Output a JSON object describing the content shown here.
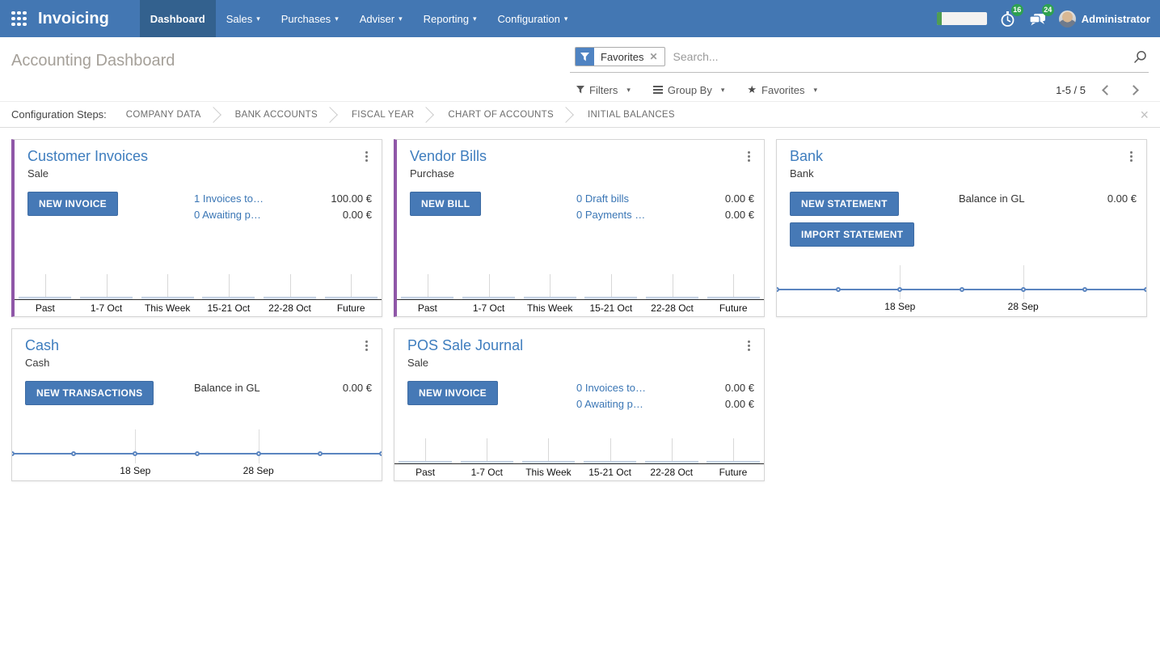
{
  "navbar": {
    "brand": "Invoicing",
    "menus": [
      {
        "label": "Dashboard",
        "active": true,
        "dropdown": false
      },
      {
        "label": "Sales",
        "active": false,
        "dropdown": true
      },
      {
        "label": "Purchases",
        "active": false,
        "dropdown": true
      },
      {
        "label": "Adviser",
        "active": false,
        "dropdown": true
      },
      {
        "label": "Reporting",
        "active": false,
        "dropdown": true
      },
      {
        "label": "Configuration",
        "active": false,
        "dropdown": true
      }
    ],
    "progress_percent": 10,
    "activities_badge": "16",
    "messages_badge": "24",
    "user_name": "Administrator"
  },
  "control_panel": {
    "title": "Accounting Dashboard",
    "search": {
      "facet_label": "Favorites",
      "placeholder": "Search..."
    },
    "filter_buttons": {
      "filters": "Filters",
      "group_by": "Group By",
      "favorites": "Favorites"
    },
    "pager": {
      "range": "1-5 / 5"
    }
  },
  "config_steps": {
    "label": "Configuration Steps:",
    "steps": [
      "COMPANY DATA",
      "BANK ACCOUNTS",
      "FISCAL YEAR",
      "CHART OF ACCOUNTS",
      "INITIAL BALANCES"
    ]
  },
  "cards": [
    {
      "title": "Customer Invoices",
      "subtitle": "Sale",
      "buttons": [
        "NEW INVOICE"
      ],
      "rows": [
        {
          "text": "1 Invoices to…",
          "amount": "100.00 €",
          "is_link": true
        },
        {
          "text": "0 Awaiting p…",
          "amount": "0.00 €",
          "is_link": true
        }
      ],
      "chart": {
        "type": "bar",
        "categories": [
          "Past",
          "1-7 Oct",
          "This Week",
          "15-21 Oct",
          "22-28 Oct",
          "Future"
        ],
        "values": [
          0,
          0,
          0,
          0,
          0,
          0
        ]
      }
    },
    {
      "title": "Vendor Bills",
      "subtitle": "Purchase",
      "buttons": [
        "NEW BILL"
      ],
      "rows": [
        {
          "text": "0 Draft bills",
          "amount": "0.00 €",
          "is_link": true
        },
        {
          "text": "0 Payments …",
          "amount": "0.00 €",
          "is_link": true
        }
      ],
      "chart": {
        "type": "bar",
        "categories": [
          "Past",
          "1-7 Oct",
          "This Week",
          "15-21 Oct",
          "22-28 Oct",
          "Future"
        ],
        "values": [
          0,
          0,
          0,
          0,
          0,
          0
        ]
      }
    },
    {
      "title": "Bank",
      "subtitle": "Bank",
      "buttons": [
        "NEW STATEMENT",
        "IMPORT STATEMENT"
      ],
      "rows": [
        {
          "text": "Balance in GL",
          "amount": "0.00 €",
          "is_link": false
        }
      ],
      "chart": {
        "type": "line",
        "x_labels": [
          "18 Sep",
          "28 Sep"
        ],
        "label_positions_pct": [
          33.33,
          66.67
        ],
        "points": 7,
        "values": [
          0,
          0,
          0,
          0,
          0,
          0,
          0
        ]
      }
    },
    {
      "title": "Cash",
      "subtitle": "Cash",
      "buttons": [
        "NEW TRANSACTIONS"
      ],
      "rows": [
        {
          "text": "Balance in GL",
          "amount": "0.00 €",
          "is_link": false
        }
      ],
      "chart": {
        "type": "line",
        "x_labels": [
          "18 Sep",
          "28 Sep"
        ],
        "label_positions_pct": [
          33.33,
          66.67
        ],
        "points": 7,
        "values": [
          0,
          0,
          0,
          0,
          0,
          0,
          0
        ]
      }
    },
    {
      "title": "POS Sale Journal",
      "subtitle": "Sale",
      "buttons": [
        "NEW INVOICE"
      ],
      "rows": [
        {
          "text": "0 Invoices to…",
          "amount": "0.00 €",
          "is_link": true
        },
        {
          "text": "0 Awaiting p…",
          "amount": "0.00 €",
          "is_link": true
        }
      ],
      "chart": {
        "type": "bar",
        "categories": [
          "Past",
          "1-7 Oct",
          "This Week",
          "15-21 Oct",
          "22-28 Oct",
          "Future"
        ],
        "values": [
          0,
          0,
          0,
          0,
          0,
          0
        ]
      }
    }
  ],
  "colors": {
    "navbar_bg": "#4377b3",
    "navbar_active": "#33618e",
    "primary_button": "#4679b6",
    "card_title_blue": "#3e7dbe",
    "link_blue": "#3a76b5",
    "accent_purple": "#8f57a8",
    "badge_green": "#2ea150",
    "progress_green": "#4f9d52",
    "chart_line_blue": "#5b85c0"
  }
}
